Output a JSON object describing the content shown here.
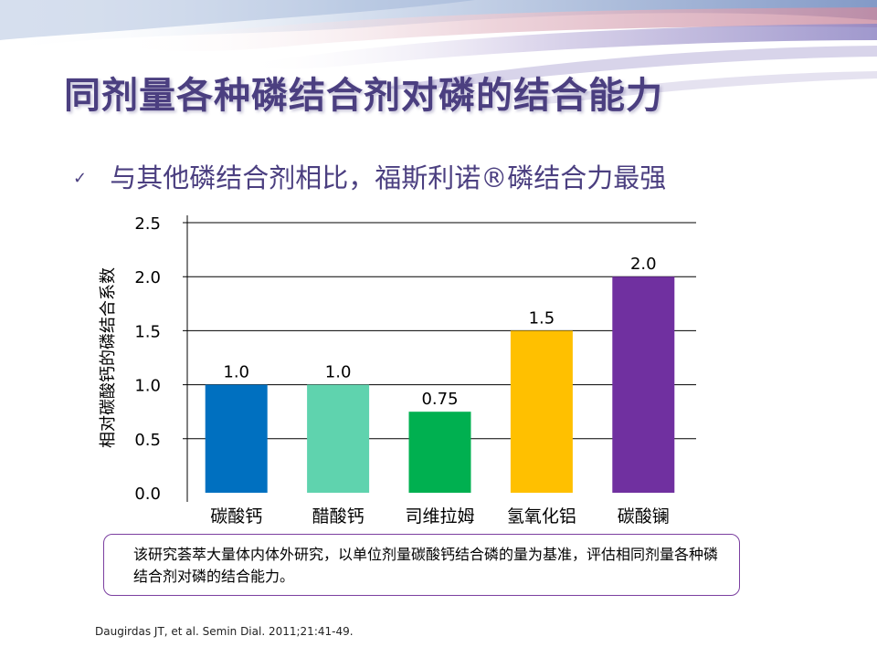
{
  "slide": {
    "title": "同剂量各种磷结合剂对磷的结合能力",
    "bullet_mark": "✓",
    "subtitle": "与其他磷结合剂相比，福斯利诺®磷结合力最强",
    "note": "该研究荟萃大量体内体外研究，以单位剂量碳酸钙结合磷的量为基准，评估相同剂量各种磷结合剂对磷的结合能力。",
    "reference": "Daugirdas JT, et al. Semin Dial. 2011;21:41-49."
  },
  "chart_data": {
    "type": "bar",
    "categories": [
      "碳酸钙",
      "醋酸钙",
      "司维拉姆",
      "氢氧化铝",
      "碳酸镧"
    ],
    "values": [
      1.0,
      1.0,
      0.75,
      1.5,
      2.0
    ],
    "value_labels": [
      "1.0",
      "1.0",
      "0.75",
      "1.5",
      "2.0"
    ],
    "colors": [
      "#0070c0",
      "#5fd3ae",
      "#00b050",
      "#ffc000",
      "#7030a0"
    ],
    "ylabel": "相对碳酸钙的磷结合系数",
    "yticks": [
      0.0,
      0.5,
      1.0,
      1.5,
      2.0,
      2.5
    ],
    "ytick_labels": [
      "0.0",
      "0.5",
      "1.0",
      "1.5",
      "2.0",
      "2.5"
    ],
    "ylim": [
      0,
      2.5
    ],
    "grid": true
  }
}
